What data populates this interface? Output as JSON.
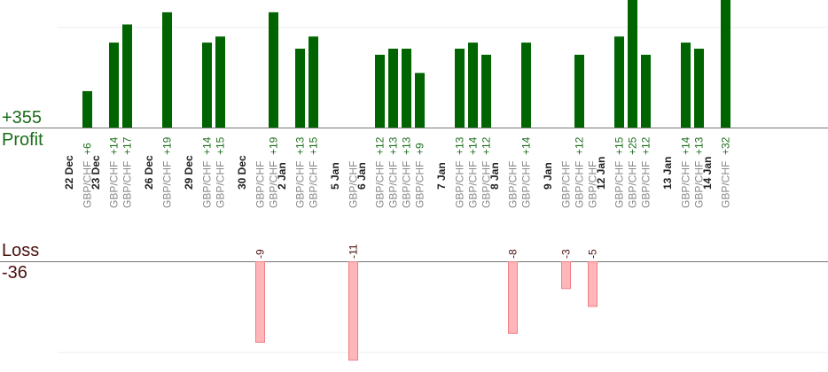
{
  "summary": {
    "profit_total": "+355",
    "profit_label": "Profit",
    "loss_label": "Loss",
    "loss_total": "-36"
  },
  "colors": {
    "profit_bar": "#006400",
    "profit_text": "#1a6e1a",
    "loss_bar": "#ffb6b9",
    "loss_text": "#4a1010",
    "date_text": "#222222",
    "pair_text": "#888888",
    "grid": "#eeeeee",
    "axis": "#777777"
  },
  "chart_data": {
    "type": "bar",
    "orientation": "vertical",
    "grid": true,
    "day_groups": [
      {
        "date": "22 Dec",
        "trades": [
          {
            "pair": "GBP/CHF",
            "value": 6
          }
        ]
      },
      {
        "date": "23 Dec",
        "trades": [
          {
            "pair": "GBP/CHF",
            "value": 14
          },
          {
            "pair": "GBP/CHF",
            "value": 17
          }
        ]
      },
      {
        "date": "26 Dec",
        "trades": [
          {
            "pair": "GBP/CHF",
            "value": 19
          }
        ]
      },
      {
        "date": "29 Dec",
        "trades": [
          {
            "pair": "GBP/CHF",
            "value": 14
          },
          {
            "pair": "GBP/CHF",
            "value": 15
          }
        ]
      },
      {
        "date": "30 Dec",
        "trades": [
          {
            "pair": "GBP/CHF",
            "value": -9
          },
          {
            "pair": "GBP/CHF",
            "value": 19
          }
        ]
      },
      {
        "date": "2 Jan",
        "trades": [
          {
            "pair": "GBP/CHF",
            "value": 13
          },
          {
            "pair": "GBP/CHF",
            "value": 15
          }
        ]
      },
      {
        "date": "5 Jan",
        "trades": [
          {
            "pair": "GBP/CHF",
            "value": -11
          }
        ]
      },
      {
        "date": "6 Jan",
        "trades": [
          {
            "pair": "GBP/CHF",
            "value": 12
          },
          {
            "pair": "GBP/CHF",
            "value": 13
          },
          {
            "pair": "GBP/CHF",
            "value": 13
          },
          {
            "pair": "GBP/CHF",
            "value": 9
          }
        ]
      },
      {
        "date": "7 Jan",
        "trades": [
          {
            "pair": "GBP/CHF",
            "value": 13
          },
          {
            "pair": "GBP/CHF",
            "value": 14
          },
          {
            "pair": "GBP/CHF",
            "value": 12
          }
        ]
      },
      {
        "date": "8 Jan",
        "trades": [
          {
            "pair": "GBP/CHF",
            "value": -8
          },
          {
            "pair": "GBP/CHF",
            "value": 14
          }
        ]
      },
      {
        "date": "9 Jan",
        "trades": [
          {
            "pair": "GBP/CHF",
            "value": -3
          },
          {
            "pair": "GBP/CHF",
            "value": 12
          },
          {
            "pair": "GBP/CHF",
            "value": -5
          }
        ]
      },
      {
        "date": "12 Jan",
        "trades": [
          {
            "pair": "GBP/CHF",
            "value": 15
          },
          {
            "pair": "GBP/CHF",
            "value": 25
          },
          {
            "pair": "GBP/CHF",
            "value": 12
          }
        ]
      },
      {
        "date": "13 Jan",
        "trades": [
          {
            "pair": "GBP/CHF",
            "value": 14
          },
          {
            "pair": "GBP/CHF",
            "value": 13
          }
        ]
      },
      {
        "date": "14 Jan",
        "trades": [
          {
            "pair": "GBP/CHF",
            "value": 32
          }
        ]
      }
    ]
  }
}
